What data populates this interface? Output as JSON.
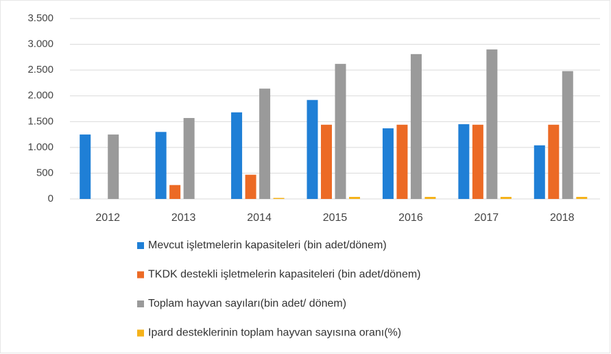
{
  "chart_data": {
    "type": "bar",
    "categories": [
      "2012",
      "2013",
      "2014",
      "2015",
      "2016",
      "2017",
      "2018"
    ],
    "series": [
      {
        "name": "Mevcut işletmelerin kapasiteleri (bin adet/dönem)",
        "color": "#1f7fd6",
        "values": [
          1250,
          1300,
          1680,
          1920,
          1370,
          1450,
          1040
        ]
      },
      {
        "name": "TKDK destekli işletmelerin kapasiteleri (bin adet/dönem)",
        "color": "#ec6a25",
        "values": [
          null,
          270,
          470,
          1440,
          1440,
          1440,
          1440
        ]
      },
      {
        "name": "Toplam hayvan sayıları(bin adet/ dönem)",
        "color": "#9a9a9a",
        "values": [
          1250,
          1570,
          2140,
          2620,
          2810,
          2900,
          2480
        ]
      },
      {
        "name": "Ipard desteklerinin toplam hayvan sayısına oranı(%)",
        "color": "#f5b21a",
        "values": [
          null,
          null,
          20,
          40,
          40,
          40,
          40
        ]
      }
    ],
    "ylim": [
      0,
      3500
    ],
    "yticks": [
      0,
      500,
      {
        "value": 1000,
        "label": "1.000"
      },
      {
        "value": 1500,
        "label": "1.500"
      },
      {
        "value": 2000,
        "label": "2.000"
      },
      {
        "value": 2500,
        "label": "2.500"
      },
      {
        "value": 3000,
        "label": "3.000"
      },
      {
        "value": 3500,
        "label": "3.500"
      }
    ],
    "grid": true
  }
}
